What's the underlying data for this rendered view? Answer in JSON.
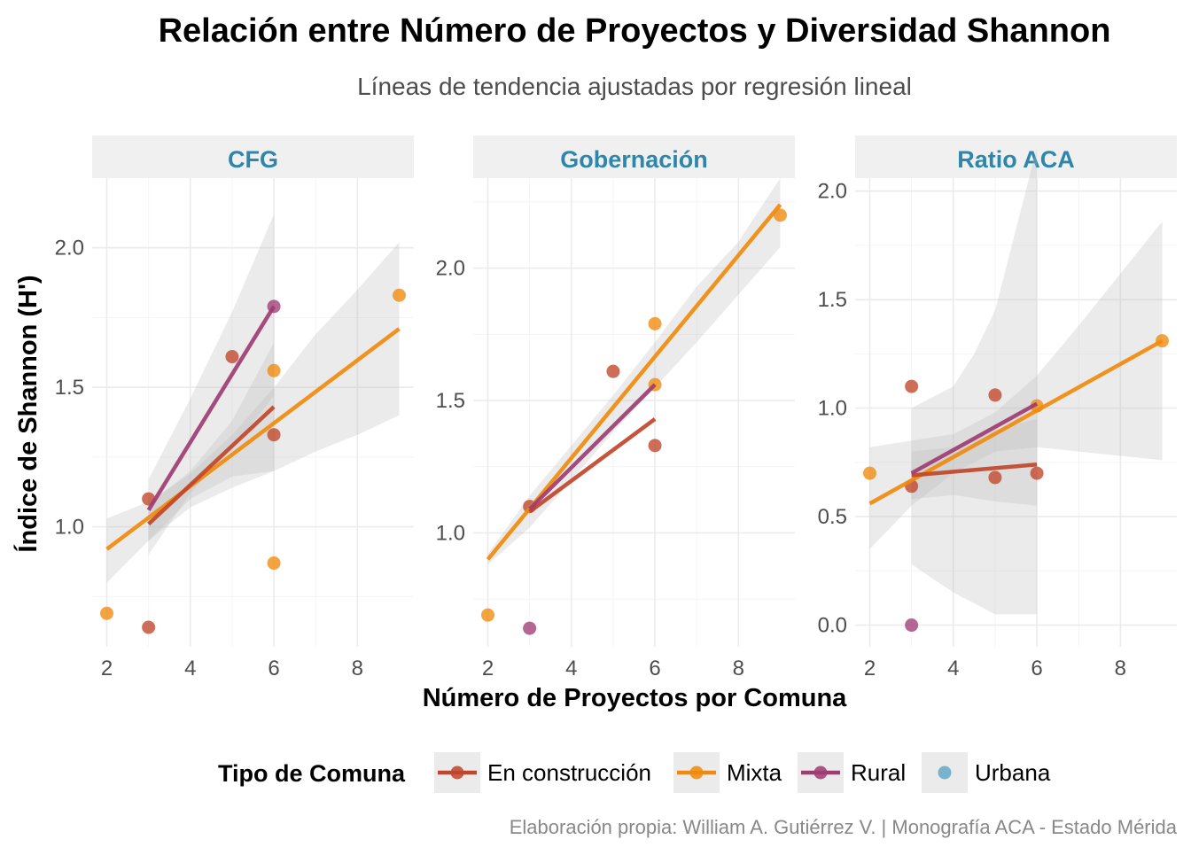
{
  "chart_data": {
    "type": "scatter",
    "title": "Relación entre Número de Proyectos y Diversidad Shannon",
    "subtitle": "Líneas de tendencia ajustadas por regresión lineal",
    "xlabel": "Número de Proyectos por Comuna",
    "ylabel": "Índice de Shannon (H')",
    "caption": "Elaboración propia: William A. Gutiérrez V. | Monografía ACA - Estado Mérida",
    "legend": {
      "title": "Tipo de Comuna",
      "position": "bottom",
      "entries": [
        {
          "name": "En construcción",
          "color": "#C0452A",
          "has_line": true
        },
        {
          "name": "Mixta",
          "color": "#F08A0C",
          "has_line": true
        },
        {
          "name": "Rural",
          "color": "#9E3C73",
          "has_line": true
        },
        {
          "name": "Urbana",
          "color": "#64A8C6",
          "has_line": false
        }
      ]
    },
    "grid": true,
    "facets": [
      {
        "label": "CFG",
        "xlim": [
          1.65,
          9.35
        ],
        "ylim": [
          0.57,
          2.25
        ],
        "xticks": [
          2,
          4,
          6,
          8
        ],
        "yticks": [
          1.0,
          1.5,
          2.0
        ],
        "ytick_labels": [
          "1.0",
          "1.5",
          "2.0"
        ],
        "points": [
          {
            "group": "Mixta",
            "x": 2,
            "y": 0.69
          },
          {
            "group": "En construcción",
            "x": 3,
            "y": 0.64
          },
          {
            "group": "En construcción",
            "x": 3,
            "y": 1.1
          },
          {
            "group": "En construcción",
            "x": 5,
            "y": 1.61
          },
          {
            "group": "Rural",
            "x": 6,
            "y": 1.79
          },
          {
            "group": "Mixta",
            "x": 6,
            "y": 1.56
          },
          {
            "group": "En construcción",
            "x": 6,
            "y": 1.33
          },
          {
            "group": "Mixta",
            "x": 6,
            "y": 0.87
          },
          {
            "group": "Mixta",
            "x": 9,
            "y": 1.83
          }
        ],
        "fits": [
          {
            "group": "Mixta",
            "x": [
              2,
              9
            ],
            "y": [
              0.92,
              1.71
            ],
            "band": {
              "x": [
                2,
                3,
                4,
                5,
                6,
                7,
                8,
                9
              ],
              "lo": [
                0.8,
                0.95,
                1.07,
                1.14,
                1.2,
                1.27,
                1.33,
                1.4
              ],
              "hi": [
                1.03,
                1.09,
                1.19,
                1.33,
                1.5,
                1.69,
                1.85,
                2.02
              ]
            }
          },
          {
            "group": "En construcción",
            "x": [
              3,
              6
            ],
            "y": [
              1.01,
              1.43
            ],
            "band": {
              "x": [
                3,
                4,
                5,
                6
              ],
              "lo": [
                0.95,
                1.1,
                1.18,
                1.2
              ],
              "hi": [
                1.08,
                1.2,
                1.38,
                1.66
              ]
            }
          },
          {
            "group": "Rural",
            "x": [
              3,
              6
            ],
            "y": [
              1.06,
              1.79
            ],
            "band": {
              "x": [
                3,
                4,
                5,
                6
              ],
              "lo": [
                0.9,
                1.12,
                1.28,
                1.47
              ],
              "hi": [
                1.17,
                1.46,
                1.77,
                2.12
              ]
            }
          }
        ]
      },
      {
        "label": "Gobernación",
        "xlim": [
          1.65,
          9.35
        ],
        "ylim": [
          0.57,
          2.34
        ],
        "xticks": [
          2,
          4,
          6,
          8
        ],
        "yticks": [
          1.0,
          1.5,
          2.0
        ],
        "ytick_labels": [
          "1.0",
          "1.5",
          "2.0"
        ],
        "points": [
          {
            "group": "Mixta",
            "x": 2,
            "y": 0.69
          },
          {
            "group": "Rural",
            "x": 3,
            "y": 0.64
          },
          {
            "group": "En construcción",
            "x": 3,
            "y": 1.1
          },
          {
            "group": "En construcción",
            "x": 5,
            "y": 1.61
          },
          {
            "group": "Mixta",
            "x": 6,
            "y": 1.79
          },
          {
            "group": "Mixta",
            "x": 6,
            "y": 1.56
          },
          {
            "group": "En construcción",
            "x": 6,
            "y": 1.33
          },
          {
            "group": "Mixta",
            "x": 9,
            "y": 2.2
          }
        ],
        "fits": [
          {
            "group": "Mixta",
            "x": [
              2,
              9
            ],
            "y": [
              0.9,
              2.24
            ],
            "band": {
              "x": [
                2,
                3,
                4,
                5,
                6,
                7,
                8,
                9
              ],
              "lo": [
                0.88,
                1.02,
                1.2,
                1.38,
                1.55,
                1.72,
                1.9,
                2.08
              ],
              "hi": [
                0.92,
                1.14,
                1.33,
                1.52,
                1.72,
                1.93,
                2.1,
                2.34
              ]
            }
          },
          {
            "group": "En construcción",
            "x": [
              3,
              6
            ],
            "y": [
              1.08,
              1.43
            ]
          },
          {
            "group": "Rural",
            "x": [
              3,
              6
            ],
            "y": [
              1.09,
              1.56
            ]
          }
        ]
      },
      {
        "label": "Ratio ACA",
        "xlim": [
          1.65,
          9.35
        ],
        "ylim": [
          -0.1,
          2.06
        ],
        "xticks": [
          2,
          4,
          6,
          8
        ],
        "yticks": [
          0.0,
          0.5,
          1.0,
          1.5,
          2.0
        ],
        "ytick_labels": [
          "0.0",
          "0.5",
          "1.0",
          "1.5",
          "2.0"
        ],
        "points": [
          {
            "group": "Mixta",
            "x": 2,
            "y": 0.7
          },
          {
            "group": "Rural",
            "x": 3,
            "y": 0.0
          },
          {
            "group": "En construcción",
            "x": 3,
            "y": 0.64
          },
          {
            "group": "En construcción",
            "x": 3,
            "y": 1.1
          },
          {
            "group": "En construcción",
            "x": 5,
            "y": 1.06
          },
          {
            "group": "En construcción",
            "x": 5,
            "y": 0.68
          },
          {
            "group": "Mixta",
            "x": 6,
            "y": 1.01
          },
          {
            "group": "En construcción",
            "x": 6,
            "y": 0.7
          },
          {
            "group": "Mixta",
            "x": 9,
            "y": 1.31
          }
        ],
        "fits": [
          {
            "group": "Mixta",
            "x": [
              2,
              9
            ],
            "y": [
              0.56,
              1.31
            ],
            "band": {
              "x": [
                2,
                3,
                4,
                5,
                6,
                7,
                8,
                9
              ],
              "lo": [
                0.35,
                0.55,
                0.7,
                0.8,
                0.82,
                0.8,
                0.78,
                0.76
              ],
              "hi": [
                0.82,
                0.85,
                0.88,
                0.98,
                1.15,
                1.38,
                1.62,
                1.86
              ]
            }
          },
          {
            "group": "En construcción",
            "x": [
              3,
              6
            ],
            "y": [
              0.69,
              0.74
            ],
            "band": {
              "x": [
                3,
                4,
                5,
                6
              ],
              "lo": [
                0.58,
                0.6,
                0.57,
                0.55
              ],
              "hi": [
                0.8,
                0.82,
                0.9,
                0.95
              ]
            }
          },
          {
            "group": "Rural",
            "x": [
              3,
              6
            ],
            "y": [
              0.7,
              1.02
            ],
            "band": {
              "x": [
                3,
                4,
                4.5,
                5,
                6
              ],
              "lo": [
                0.28,
                0.15,
                0.1,
                0.05,
                0.05
              ],
              "hi": [
                1.0,
                1.1,
                1.25,
                1.45,
                2.2
              ]
            }
          }
        ]
      }
    ]
  }
}
